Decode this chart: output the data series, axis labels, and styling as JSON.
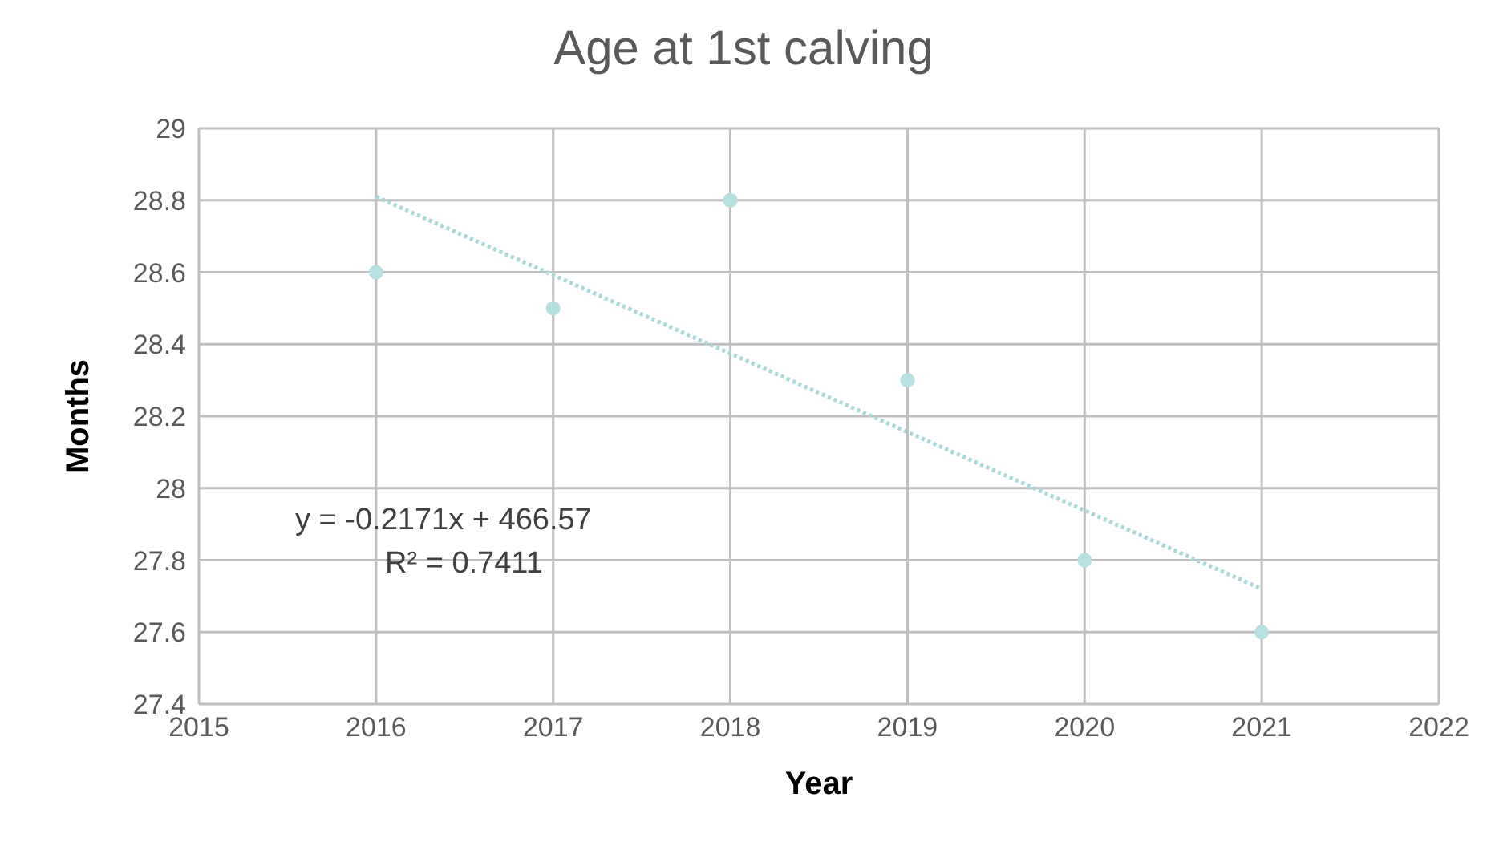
{
  "chart_data": {
    "type": "scatter",
    "title": "Age at 1st calving",
    "xlabel": "Year",
    "ylabel": "Months",
    "x": [
      2016,
      2017,
      2018,
      2019,
      2020,
      2021
    ],
    "series": [
      {
        "color": "#b7e0e0",
        "values": [
          28.6,
          28.5,
          28.8,
          28.3,
          27.8,
          27.6
        ],
        "marker": "circle"
      },
      {
        "type": "line",
        "color": "#a8d8d8",
        "x": [
          2016,
          2021
        ],
        "values": [
          28.81,
          27.72
        ],
        "line_style": "dotted",
        "marker": "none"
      }
    ],
    "annotations": [
      "y = -0.2171x + 466.57",
      "R² = 0.7411"
    ],
    "xlim": [
      2015,
      2022
    ],
    "xticks": [
      2015,
      2016,
      2017,
      2018,
      2019,
      2020,
      2021,
      2022
    ],
    "ylim": [
      27.4,
      29
    ],
    "yticks": [
      27.4,
      27.6,
      27.8,
      28,
      28.2,
      28.4,
      28.6,
      28.8,
      29
    ],
    "grid": true
  }
}
